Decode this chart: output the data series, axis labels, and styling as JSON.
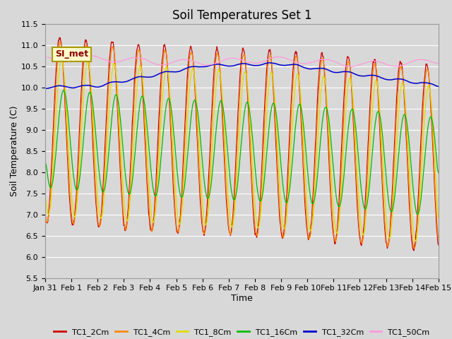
{
  "title": "Soil Temperatures Set 1",
  "xlabel": "Time",
  "ylabel": "Soil Temperature (C)",
  "ylim": [
    5.5,
    11.5
  ],
  "yticks": [
    5.5,
    6.0,
    6.5,
    7.0,
    7.5,
    8.0,
    8.5,
    9.0,
    9.5,
    10.0,
    10.5,
    11.0,
    11.5
  ],
  "xtick_labels": [
    "Jan 31",
    "Feb 1",
    "Feb 2",
    "Feb 3",
    "Feb 4",
    "Feb 5",
    "Feb 6",
    "Feb 7",
    "Feb 8",
    "Feb 9",
    "Feb 10",
    "Feb 11",
    "Feb 12",
    "Feb 13",
    "Feb 14",
    "Feb 15"
  ],
  "colors": {
    "TC1_2Cm": "#cc0000",
    "TC1_4Cm": "#ff8800",
    "TC1_8Cm": "#dddd00",
    "TC1_16Cm": "#00bb00",
    "TC1_32Cm": "#0000cc",
    "TC1_50Cm": "#ff99dd"
  },
  "annotation_text": "SI_met",
  "bg_color": "#d8d8d8",
  "plot_bg_color": "#d8d8d8",
  "grid_color": "#ffffff",
  "title_fontsize": 12,
  "axis_label_fontsize": 9,
  "tick_fontsize": 8
}
